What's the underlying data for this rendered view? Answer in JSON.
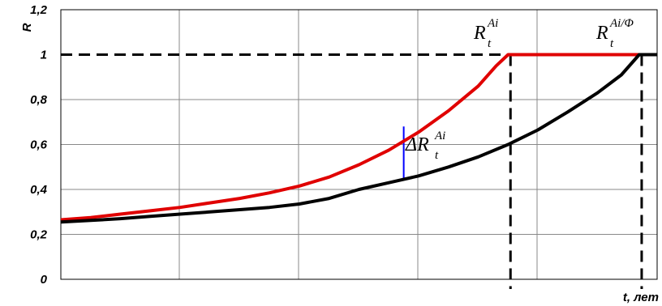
{
  "chart_data": {
    "type": "line",
    "title": "",
    "ylabel": "R",
    "xlabel": "t, лет",
    "ylim": [
      0,
      1.2
    ],
    "y_ticks": [
      "0",
      "0,2",
      "0,4",
      "0,6",
      "0,8",
      "1",
      "1,2"
    ],
    "y_tick_values": [
      0,
      0.2,
      0.4,
      0.6,
      0.8,
      1.0,
      1.2
    ],
    "x_range": [
      0,
      1
    ],
    "grid": true,
    "legend": "none",
    "series": [
      {
        "color": "#e00000",
        "x": [
          0,
          0.05,
          0.1,
          0.15,
          0.2,
          0.25,
          0.3,
          0.35,
          0.4,
          0.45,
          0.5,
          0.55,
          0.6,
          0.65,
          0.7,
          0.73,
          0.75,
          0.78,
          0.8,
          0.82,
          0.86,
          0.9,
          0.94,
          1.0
        ],
        "values": [
          0.265,
          0.275,
          0.29,
          0.305,
          0.32,
          0.34,
          0.36,
          0.385,
          0.415,
          0.455,
          0.51,
          0.575,
          0.655,
          0.75,
          0.86,
          0.95,
          1.0,
          1.0,
          1.0,
          1.0,
          1.0,
          1.0,
          1.0,
          1.0
        ]
      },
      {
        "color": "#000000",
        "x": [
          0,
          0.05,
          0.1,
          0.15,
          0.2,
          0.25,
          0.3,
          0.35,
          0.4,
          0.45,
          0.5,
          0.55,
          0.6,
          0.65,
          0.7,
          0.75,
          0.8,
          0.85,
          0.9,
          0.94,
          0.97,
          1.0
        ],
        "values": [
          0.255,
          0.262,
          0.27,
          0.28,
          0.29,
          0.3,
          0.31,
          0.32,
          0.335,
          0.36,
          0.4,
          0.43,
          0.46,
          0.5,
          0.545,
          0.6,
          0.665,
          0.745,
          0.83,
          0.91,
          1.0,
          1.0
        ]
      }
    ],
    "reference_lines": [
      {
        "type": "horizontal",
        "y": 1.0,
        "style": "dashed",
        "color": "#000000"
      },
      {
        "type": "vertical",
        "label": "R_t^Ai",
        "style": "dashed",
        "color": "#000000"
      },
      {
        "type": "vertical",
        "label": "R_t^Ai/Ф",
        "style": "dashed",
        "color": "#000000"
      }
    ],
    "annotations": {
      "r_ai": {
        "main": "R",
        "sup": "Ai",
        "sub": "t"
      },
      "r_aif": {
        "main": "R",
        "sup": "Ai/Φ",
        "sub": "t"
      },
      "delta": {
        "main": "ΔR",
        "sup": "Ai",
        "sub": "t",
        "color": "#0000ff"
      }
    }
  }
}
